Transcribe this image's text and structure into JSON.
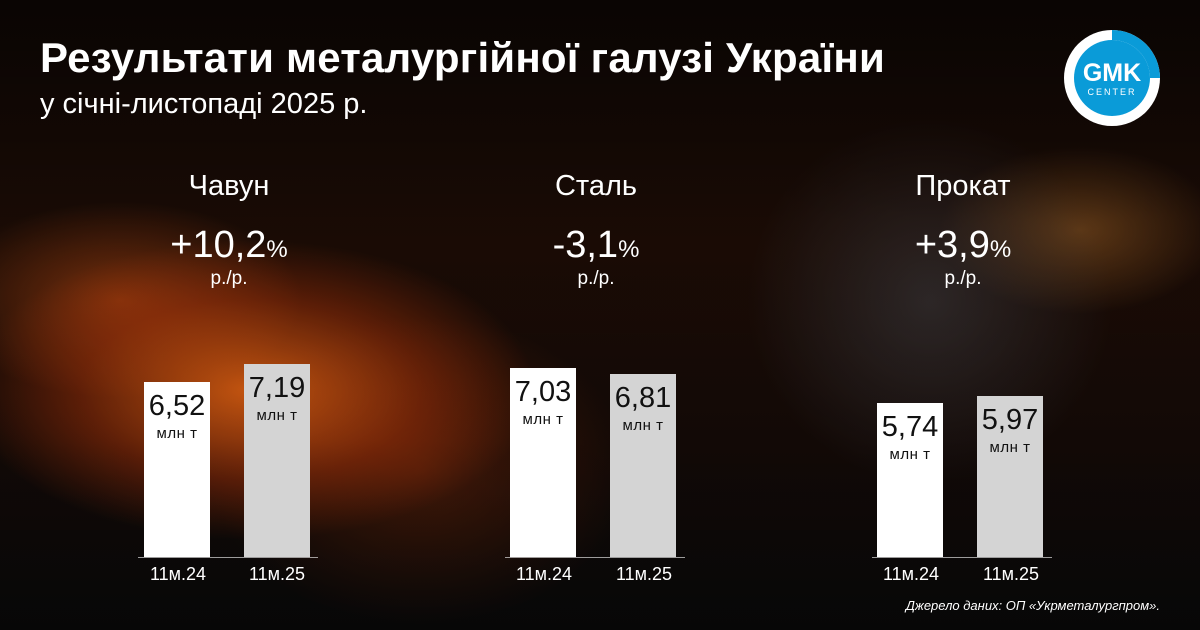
{
  "header": {
    "title": "Результати металургійної галузі України",
    "subtitle": "у січні-листопаді 2025 р."
  },
  "logo": {
    "line1": "GMK",
    "line2": "CENTER",
    "accent": "#0a9bd8"
  },
  "chart_data": [
    {
      "type": "bar",
      "title": "Чавун",
      "change": "+10,2",
      "change_unit": "%",
      "change_note": "р./р.",
      "categories": [
        "11м.24",
        "11м.25"
      ],
      "values": [
        6.52,
        7.19
      ],
      "value_labels": [
        "6,52",
        "7,19"
      ],
      "unit": "млн т",
      "ylim": [
        0,
        7.8
      ]
    },
    {
      "type": "bar",
      "title": "Сталь",
      "change": "-3,1",
      "change_unit": "%",
      "change_note": "р./р.",
      "categories": [
        "11м.24",
        "11м.25"
      ],
      "values": [
        7.03,
        6.81
      ],
      "value_labels": [
        "7,03",
        "6,81"
      ],
      "unit": "млн т",
      "ylim": [
        0,
        7.8
      ]
    },
    {
      "type": "bar",
      "title": "Прокат",
      "change": "+3,9",
      "change_unit": "%",
      "change_note": "р./р.",
      "categories": [
        "11м.24",
        "11м.25"
      ],
      "values": [
        5.74,
        5.97
      ],
      "value_labels": [
        "5,74",
        "5,97"
      ],
      "unit": "млн т",
      "ylim": [
        0,
        7.8
      ]
    }
  ],
  "footer": {
    "source": "Джерело даних: ОП «Укрметалургпром»."
  }
}
